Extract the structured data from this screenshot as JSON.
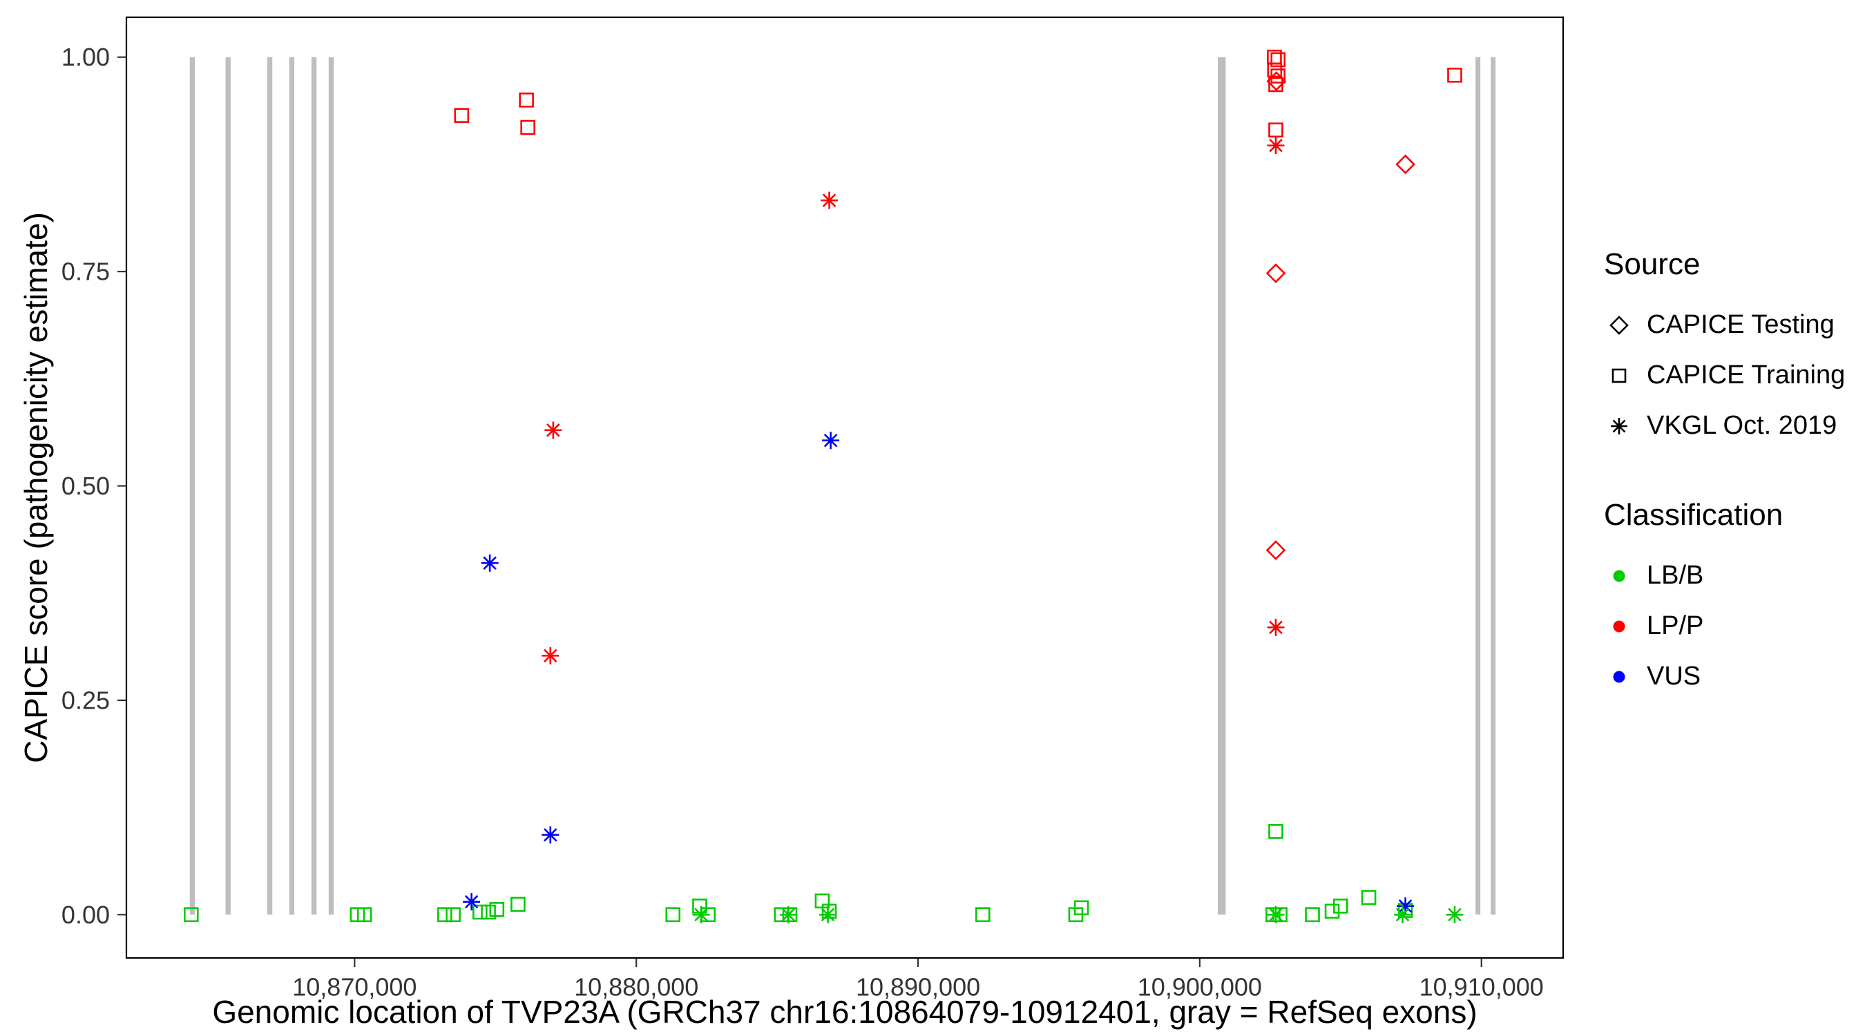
{
  "legend": {
    "source": {
      "title": "Source",
      "items": [
        {
          "shape": "diamond",
          "label": "CAPICE Testing"
        },
        {
          "shape": "square",
          "label": "CAPICE Training"
        },
        {
          "shape": "asterisk",
          "label": "VKGL Oct. 2019"
        }
      ]
    },
    "classification": {
      "title": "Classification",
      "items": [
        {
          "color": "#00CC00",
          "label": "LB/B"
        },
        {
          "color": "#FF0000",
          "label": "LP/P"
        },
        {
          "color": "#0000FF",
          "label": "VUS"
        }
      ]
    }
  },
  "chart_data": {
    "type": "scatter",
    "title": "",
    "xlabel": "Genomic location of TVP23A (GRCh37 chr16:10864079-10912401, gray = RefSeq exons)",
    "ylabel": "CAPICE score (pathogenicity estimate)",
    "xlim": [
      10861900,
      10912900
    ],
    "ylim": [
      -0.0505,
      1.0465
    ],
    "grid": false,
    "legend_position": "right",
    "x_ticks": [
      {
        "value": 10870000,
        "label": "10,870,000"
      },
      {
        "value": 10880000,
        "label": "10,880,000"
      },
      {
        "value": 10890000,
        "label": "10,890,000"
      },
      {
        "value": 10900000,
        "label": "10,900,000"
      },
      {
        "value": 10910000,
        "label": "10,910,000"
      }
    ],
    "y_ticks": [
      {
        "value": 0.0,
        "label": "0.00"
      },
      {
        "value": 0.25,
        "label": "0.25"
      },
      {
        "value": 0.5,
        "label": "0.50"
      },
      {
        "value": 0.75,
        "label": "0.75"
      },
      {
        "value": 1.0,
        "label": "1.00"
      }
    ],
    "exon_color": "#BEBEBE",
    "exon_y_range": [
      0.0,
      1.0
    ],
    "exons": [
      [
        10864150,
        10864330
      ],
      [
        10865420,
        10865600
      ],
      [
        10866900,
        10867080
      ],
      [
        10867680,
        10867860
      ],
      [
        10868470,
        10868650
      ],
      [
        10869080,
        10869260
      ],
      [
        10900640,
        10900920
      ],
      [
        10909790,
        10909960
      ],
      [
        10910330,
        10910500
      ]
    ],
    "series": [
      {
        "name": "CAPICE Training LB/B",
        "source": "CAPICE Training",
        "classification": "LB/B",
        "shape": "square",
        "color": "#00CC00",
        "points": [
          [
            10864200,
            0.0
          ],
          [
            10870100,
            0.0
          ],
          [
            10870350,
            0.0
          ],
          [
            10873200,
            0.0
          ],
          [
            10873500,
            0.0
          ],
          [
            10874450,
            0.003
          ],
          [
            10874750,
            0.003
          ],
          [
            10875050,
            0.006
          ],
          [
            10875800,
            0.012
          ],
          [
            10881300,
            0.0
          ],
          [
            10882250,
            0.01
          ],
          [
            10882550,
            0.0
          ],
          [
            10885150,
            0.0
          ],
          [
            10885450,
            0.0
          ],
          [
            10886600,
            0.016
          ],
          [
            10886850,
            0.004
          ],
          [
            10892300,
            0.0
          ],
          [
            10895600,
            0.0
          ],
          [
            10895800,
            0.008
          ],
          [
            10902600,
            0.0
          ],
          [
            10902850,
            0.0
          ],
          [
            10902700,
            0.097
          ],
          [
            10904000,
            0.0
          ],
          [
            10904700,
            0.004
          ],
          [
            10905000,
            0.01
          ],
          [
            10906000,
            0.02
          ],
          [
            10907300,
            0.005
          ]
        ]
      },
      {
        "name": "CAPICE Training LP/P",
        "source": "CAPICE Training",
        "classification": "LP/P",
        "shape": "square",
        "color": "#FF0000",
        "points": [
          [
            10873800,
            0.932
          ],
          [
            10876100,
            0.95
          ],
          [
            10876150,
            0.918
          ],
          [
            10902650,
            1.0
          ],
          [
            10902780,
            0.997
          ],
          [
            10902660,
            0.985
          ],
          [
            10902780,
            0.978
          ],
          [
            10902700,
            0.968
          ],
          [
            10902700,
            0.915
          ],
          [
            10909050,
            0.979
          ]
        ]
      },
      {
        "name": "CAPICE Testing LP/P",
        "source": "CAPICE Testing",
        "classification": "LP/P",
        "shape": "diamond",
        "color": "#FF0000",
        "points": [
          [
            10902720,
            0.972
          ],
          [
            10902700,
            0.748
          ],
          [
            10902700,
            0.425
          ],
          [
            10907300,
            0.875
          ]
        ]
      },
      {
        "name": "VKGL Oct. 2019 LP/P",
        "source": "VKGL Oct. 2019",
        "classification": "LP/P",
        "shape": "asterisk",
        "color": "#FF0000",
        "points": [
          [
            10877050,
            0.565
          ],
          [
            10876950,
            0.302
          ],
          [
            10886850,
            0.833
          ],
          [
            10902700,
            0.897
          ],
          [
            10902700,
            0.335
          ]
        ]
      },
      {
        "name": "VKGL Oct. 2019 VUS",
        "source": "VKGL Oct. 2019",
        "classification": "VUS",
        "shape": "asterisk",
        "color": "#0000FF",
        "points": [
          [
            10874800,
            0.41
          ],
          [
            10874150,
            0.015
          ],
          [
            10876950,
            0.093
          ],
          [
            10886900,
            0.553
          ],
          [
            10907300,
            0.01
          ]
        ]
      },
      {
        "name": "VKGL Oct. 2019 LB/B",
        "source": "VKGL Oct. 2019",
        "classification": "LB/B",
        "shape": "asterisk",
        "color": "#00CC00",
        "points": [
          [
            10882300,
            0.0
          ],
          [
            10885400,
            0.0
          ],
          [
            10886800,
            0.0
          ],
          [
            10902700,
            0.0
          ],
          [
            10907200,
            0.0
          ],
          [
            10909050,
            0.0
          ]
        ]
      }
    ]
  }
}
